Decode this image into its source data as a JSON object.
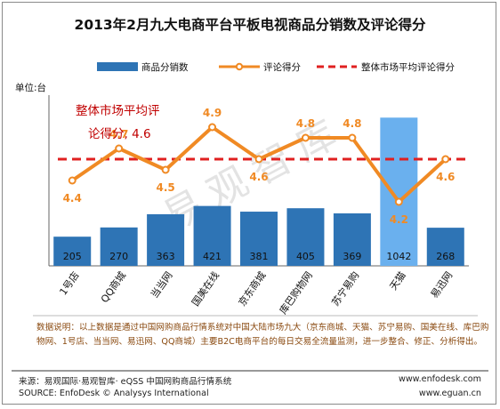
{
  "chart_data": {
    "type": "bar+line",
    "title": "2013年2月九大电商平台平板电视商品分销数及评论得分",
    "unit_label": "单位:台",
    "categories": [
      "1号店",
      "QQ商城",
      "当当网",
      "国美在线",
      "京东商城",
      "库巴购物网",
      "苏宁易购",
      "天猫",
      "易迅网"
    ],
    "series": [
      {
        "name": "商品分销数",
        "type": "bar",
        "axis": "left",
        "values": [
          205,
          270,
          363,
          421,
          381,
          405,
          369,
          1042,
          268
        ]
      },
      {
        "name": "评论得分",
        "type": "line",
        "axis": "right",
        "values": [
          4.4,
          4.7,
          4.5,
          4.9,
          4.6,
          4.8,
          4.8,
          4.2,
          4.6
        ]
      }
    ],
    "reference_line": {
      "name": "整体市场平均评论得分",
      "value": 4.6
    },
    "annotation": {
      "line1": "整体市场平均评",
      "line2": "论得分, 4.6"
    },
    "left_range": [
      0,
      1200
    ],
    "right_range": [
      3.6,
      5.2
    ],
    "watermark": "易观智库",
    "colors": {
      "bar": "#2e74b5",
      "bar_highlight": "#6ab0ee",
      "line": "#f08a24",
      "reference": "#e02020",
      "label": "#f08a24",
      "annotation": "#c00000"
    }
  },
  "note": "数据说明：以上数据是通过中国网购商品行情系统对中国大陆市场九大（京东商城、天猫、苏宁易购、国美在线、库巴购物网、1号店、当当网、易迅网、QQ商城）主要B2C电商平台的每日交易全流量监测，进一步整合、修正、分析得出。",
  "footer": {
    "source_cn": "来源：易观国际·易观智库· eQSS 中国网购商品行情系统",
    "source_en": "SOURCE: EnfoDesk © Analysys International",
    "url1": "www.enfodesk.com",
    "url2": "www.eguan.cn"
  }
}
